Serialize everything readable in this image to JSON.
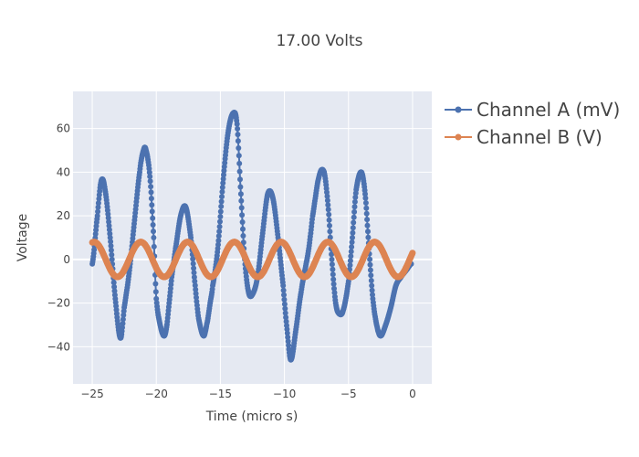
{
  "chart_data": {
    "type": "line",
    "title": "17.00 Volts",
    "xlabel": "Time (micro s)",
    "ylabel": "Voltage",
    "xlim": [
      -26.5,
      1.5
    ],
    "ylim": [
      -57,
      77
    ],
    "xticks": [
      -25,
      -20,
      -15,
      -10,
      -5,
      0
    ],
    "yticks": [
      -40,
      -20,
      0,
      20,
      40,
      60
    ],
    "xtick_labels": [
      "−25",
      "−20",
      "−15",
      "−10",
      "−5",
      "0"
    ],
    "ytick_labels": [
      "−40",
      "−20",
      "0",
      "20",
      "40",
      "60"
    ],
    "grid": true,
    "plot_background": "#e5e9f2",
    "legend_position": "top-right-outside",
    "series": [
      {
        "name": "Channel A (mV)",
        "color": "#4c72b0",
        "mode": "lines+markers",
        "x": [
          -25.0,
          -24.6,
          -24.3,
          -24.0,
          -23.6,
          -23.2,
          -22.8,
          -22.5,
          -22.1,
          -21.7,
          -21.3,
          -21.0,
          -20.8,
          -20.5,
          -20.2,
          -20.0,
          -19.7,
          -19.4,
          -19.2,
          -19.0,
          -18.8,
          -18.5,
          -18.1,
          -17.7,
          -17.3,
          -17.0,
          -16.7,
          -16.3,
          -16.0,
          -15.8,
          -15.6,
          -15.2,
          -14.8,
          -14.4,
          -14.0,
          -13.7,
          -13.4,
          -13.1,
          -12.8,
          -12.5,
          -12.1,
          -11.7,
          -11.3,
          -10.9,
          -10.5,
          -10.1,
          -9.8,
          -9.5,
          -9.1,
          -8.7,
          -8.4,
          -8.1,
          -7.8,
          -7.3,
          -6.9,
          -6.6,
          -6.3,
          -6.0,
          -5.7,
          -5.4,
          -5.0,
          -4.7,
          -4.4,
          -4.0,
          -3.7,
          -3.4,
          -3.1,
          -2.8,
          -2.5,
          -2.1,
          -1.7,
          -1.3,
          -0.9,
          -0.5,
          -0.1
        ],
        "y": [
          -2,
          20,
          36,
          32,
          10,
          -18,
          -36,
          -22,
          -5,
          18,
          40,
          50,
          50,
          38,
          10,
          -18,
          -30,
          -35,
          -31,
          -20,
          -8,
          5,
          20,
          24,
          10,
          -10,
          -27,
          -35,
          -28,
          -20,
          -12,
          5,
          35,
          58,
          67,
          62,
          30,
          0,
          -15,
          -16,
          -8,
          12,
          30,
          28,
          10,
          -12,
          -32,
          -46,
          -32,
          -15,
          -5,
          5,
          20,
          38,
          40,
          25,
          0,
          -20,
          -25,
          -23,
          -10,
          10,
          32,
          40,
          30,
          5,
          -18,
          -30,
          -35,
          -30,
          -22,
          -12,
          -8,
          -5,
          -2
        ]
      },
      {
        "name": "Channel B (V)",
        "color": "#dd8452",
        "mode": "lines+markers",
        "amplitude": 8,
        "period": 3.65,
        "phase_reference": 0,
        "phase_value": 3
      }
    ]
  }
}
